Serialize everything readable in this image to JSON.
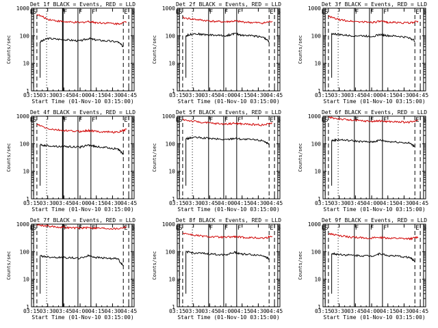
{
  "x_axis_label": "Start Time (01-Nov-10 03:15:00)",
  "y_axis_label": "Counts/sec",
  "colors": {
    "events": "#000000",
    "lld": "#d00000",
    "axes": "#000000"
  },
  "chart_data": [
    {
      "type": "line",
      "title": "Det 1f BLACK = Events, RED = LLD",
      "x_ticks": [
        "03:15",
        "03:30",
        "03:45",
        "04:00",
        "04:15",
        "04:30",
        "04:45"
      ],
      "x_range": [
        "03:15",
        "04:50"
      ],
      "y_scale": "log",
      "y_ticks": [
        "1",
        "10",
        "100",
        "1000"
      ],
      "y_range": [
        1,
        1000
      ],
      "markers": {
        "S": [
          "03:17",
          "04:48"
        ],
        "E": [
          "03:18",
          "04:45"
        ],
        "F": [
          "03:44",
          "03:58",
          "04:10"
        ]
      },
      "dashed_lines": [
        "03:17",
        "03:20",
        "04:40",
        "04:45"
      ],
      "dotted_lines": [
        "03:29"
      ],
      "series": [
        {
          "name": "Events",
          "color": "black",
          "x": [
            "03:23",
            "03:30",
            "03:40",
            "03:50",
            "04:00",
            "04:08",
            "04:15",
            "04:25",
            "04:35",
            "04:40"
          ],
          "values": [
            60,
            80,
            75,
            70,
            65,
            80,
            70,
            65,
            60,
            40
          ]
        },
        {
          "name": "LLD",
          "color": "red",
          "x": [
            "03:20",
            "03:30",
            "03:40",
            "03:50",
            "04:00",
            "04:08",
            "04:15",
            "04:25",
            "04:35",
            "04:43"
          ],
          "values": [
            600,
            400,
            340,
            310,
            300,
            330,
            300,
            290,
            270,
            320
          ]
        }
      ]
    },
    {
      "type": "line",
      "title": "Det 2f BLACK = Events, RED = LLD",
      "x_ticks": [
        "03:15",
        "03:30",
        "03:45",
        "04:00",
        "04:15",
        "04:30",
        "04:45"
      ],
      "x_range": [
        "03:15",
        "04:50"
      ],
      "y_scale": "log",
      "y_ticks": [
        "1",
        "10",
        "100",
        "1000"
      ],
      "y_range": [
        1,
        1000
      ],
      "markers": {
        "S": [
          "03:17",
          "04:48"
        ],
        "E": [
          "03:18",
          "04:45"
        ],
        "F": [
          "03:44",
          "03:58",
          "04:10"
        ]
      },
      "dashed_lines": [
        "03:17",
        "03:20",
        "04:40",
        "04:45"
      ],
      "dotted_lines": [
        "03:29"
      ],
      "series": [
        {
          "name": "Events",
          "color": "black",
          "x": [
            "03:23",
            "03:30",
            "03:40",
            "03:50",
            "04:00",
            "04:08",
            "04:15",
            "04:25",
            "04:35",
            "04:40"
          ],
          "values": [
            100,
            120,
            110,
            105,
            100,
            120,
            105,
            100,
            90,
            60
          ]
        },
        {
          "name": "LLD",
          "color": "red",
          "x": [
            "03:20",
            "03:30",
            "03:40",
            "03:50",
            "04:00",
            "04:08",
            "04:15",
            "04:25",
            "04:35",
            "04:43"
          ],
          "values": [
            450,
            400,
            360,
            330,
            320,
            340,
            320,
            300,
            290,
            340
          ]
        }
      ]
    },
    {
      "type": "line",
      "title": "Det 3f BLACK = Events, RED = LLD",
      "x_ticks": [
        "03:15",
        "03:30",
        "03:45",
        "04:00",
        "04:15",
        "04:30",
        "04:45"
      ],
      "x_range": [
        "03:15",
        "04:50"
      ],
      "y_scale": "log",
      "y_ticks": [
        "1",
        "10",
        "100",
        "1000"
      ],
      "y_range": [
        1,
        1000
      ],
      "markers": {
        "S": [
          "03:17",
          "04:48"
        ],
        "E": [
          "03:18",
          "04:45"
        ],
        "F": [
          "03:44",
          "03:58",
          "04:10"
        ]
      },
      "dashed_lines": [
        "03:17",
        "03:20",
        "04:40",
        "04:45"
      ],
      "dotted_lines": [
        "03:29"
      ],
      "series": [
        {
          "name": "Events",
          "color": "black",
          "x": [
            "03:23",
            "03:30",
            "03:40",
            "03:50",
            "04:00",
            "04:08",
            "04:15",
            "04:25",
            "04:35",
            "04:40"
          ],
          "values": [
            120,
            110,
            100,
            100,
            95,
            110,
            100,
            95,
            85,
            65
          ]
        },
        {
          "name": "LLD",
          "color": "red",
          "x": [
            "03:20",
            "03:30",
            "03:40",
            "03:50",
            "04:00",
            "04:08",
            "04:15",
            "04:25",
            "04:35",
            "04:43"
          ],
          "values": [
            500,
            380,
            340,
            320,
            310,
            330,
            310,
            300,
            290,
            340
          ]
        }
      ]
    },
    {
      "type": "line",
      "title": "Det 4f BLACK = Events, RED = LLD",
      "x_ticks": [
        "03:15",
        "03:30",
        "03:45",
        "04:00",
        "04:15",
        "04:30",
        "04:45"
      ],
      "x_range": [
        "03:15",
        "04:50"
      ],
      "y_scale": "log",
      "y_ticks": [
        "1",
        "10",
        "100",
        "1000"
      ],
      "y_range": [
        1,
        1000
      ],
      "markers": {
        "S": [
          "03:17",
          "04:48"
        ],
        "E": [
          "03:18",
          "04:45"
        ],
        "F": [
          "03:44",
          "03:58",
          "04:10"
        ]
      },
      "dashed_lines": [
        "03:17",
        "03:20",
        "04:40",
        "04:45"
      ],
      "dotted_lines": [
        "03:29"
      ],
      "series": [
        {
          "name": "Events",
          "color": "black",
          "x": [
            "03:23",
            "03:30",
            "03:40",
            "03:50",
            "04:00",
            "04:08",
            "04:15",
            "04:25",
            "04:35",
            "04:40"
          ],
          "values": [
            90,
            85,
            80,
            78,
            75,
            90,
            78,
            72,
            65,
            40
          ]
        },
        {
          "name": "LLD",
          "color": "red",
          "x": [
            "03:20",
            "03:30",
            "03:40",
            "03:50",
            "04:00",
            "04:08",
            "04:15",
            "04:25",
            "04:35",
            "04:43"
          ],
          "values": [
            500,
            350,
            310,
            290,
            280,
            300,
            280,
            270,
            260,
            330
          ]
        }
      ]
    },
    {
      "type": "line",
      "title": "Det 5f BLACK = Events, RED = LLD",
      "x_ticks": [
        "03:15",
        "03:30",
        "03:45",
        "04:00",
        "04:15",
        "04:30",
        "04:45"
      ],
      "x_range": [
        "03:15",
        "04:50"
      ],
      "y_scale": "log",
      "y_ticks": [
        "1",
        "10",
        "100",
        "1000"
      ],
      "y_range": [
        1,
        1000
      ],
      "markers": {
        "S": [
          "03:17",
          "04:48"
        ],
        "E": [
          "03:18",
          "04:45"
        ],
        "F": [
          "03:44",
          "03:58",
          "04:10"
        ]
      },
      "dashed_lines": [
        "03:17",
        "03:20",
        "04:40",
        "04:45"
      ],
      "dotted_lines": [
        "03:29"
      ],
      "series": [
        {
          "name": "Events",
          "color": "black",
          "x": [
            "03:23",
            "03:30",
            "03:40",
            "03:50",
            "04:00",
            "04:08",
            "04:15",
            "04:25",
            "04:35",
            "04:40"
          ],
          "values": [
            150,
            170,
            160,
            150,
            140,
            160,
            145,
            140,
            130,
            90
          ]
        },
        {
          "name": "LLD",
          "color": "red",
          "x": [
            "03:20",
            "03:30",
            "03:40",
            "03:50",
            "04:00",
            "04:08",
            "04:15",
            "04:25",
            "04:35",
            "04:43"
          ],
          "values": [
            750,
            650,
            580,
            540,
            520,
            550,
            520,
            500,
            480,
            560
          ]
        }
      ]
    },
    {
      "type": "line",
      "title": "Det 6f BLACK = Events, RED = LLD",
      "x_ticks": [
        "03:15",
        "03:30",
        "03:45",
        "04:00",
        "04:15",
        "04:30",
        "04:45"
      ],
      "x_range": [
        "03:15",
        "04:50"
      ],
      "y_scale": "log",
      "y_ticks": [
        "1",
        "10",
        "100",
        "1000"
      ],
      "y_range": [
        1,
        1000
      ],
      "markers": {
        "S": [
          "03:17",
          "04:48"
        ],
        "E": [
          "03:18",
          "04:45"
        ],
        "F": [
          "03:44",
          "03:58",
          "04:10"
        ]
      },
      "dashed_lines": [
        "03:17",
        "03:20",
        "04:40",
        "04:45"
      ],
      "dotted_lines": [
        "03:29"
      ],
      "series": [
        {
          "name": "Events",
          "color": "black",
          "x": [
            "03:23",
            "03:30",
            "03:40",
            "03:50",
            "04:00",
            "04:08",
            "04:15",
            "04:25",
            "04:35",
            "04:40"
          ],
          "values": [
            130,
            140,
            130,
            120,
            115,
            135,
            120,
            115,
            105,
            80
          ]
        },
        {
          "name": "LLD",
          "color": "red",
          "x": [
            "03:20",
            "03:30",
            "03:40",
            "03:50",
            "04:00",
            "04:08",
            "04:15",
            "04:25",
            "04:35",
            "04:43"
          ],
          "values": [
            900,
            800,
            720,
            680,
            650,
            670,
            640,
            620,
            600,
            700
          ]
        }
      ]
    },
    {
      "type": "line",
      "title": "Det 7f BLACK = Events, RED = LLD",
      "x_ticks": [
        "03:15",
        "03:30",
        "03:45",
        "04:00",
        "04:15",
        "04:30",
        "04:45"
      ],
      "x_range": [
        "03:15",
        "04:50"
      ],
      "y_scale": "log",
      "y_ticks": [
        "1",
        "10",
        "100",
        "1000"
      ],
      "y_range": [
        1,
        1000
      ],
      "markers": {
        "S": [
          "03:17",
          "04:48"
        ],
        "E": [
          "03:18",
          "04:45"
        ],
        "F": [
          "03:44",
          "03:58",
          "04:10"
        ]
      },
      "dashed_lines": [
        "03:17",
        "03:20",
        "04:40",
        "04:45"
      ],
      "dotted_lines": [
        "03:29"
      ],
      "series": [
        {
          "name": "Events",
          "color": "black",
          "x": [
            "03:23",
            "03:30",
            "03:40",
            "03:50",
            "04:00",
            "04:08",
            "04:15",
            "04:25",
            "04:35",
            "04:40"
          ],
          "values": [
            70,
            65,
            62,
            60,
            58,
            72,
            62,
            58,
            55,
            30
          ]
        },
        {
          "name": "LLD",
          "color": "red",
          "x": [
            "03:20",
            "03:30",
            "03:40",
            "03:50",
            "04:00",
            "04:08",
            "04:15",
            "04:25",
            "04:35",
            "04:43"
          ],
          "values": [
            950,
            850,
            780,
            740,
            720,
            750,
            720,
            700,
            680,
            800
          ]
        }
      ]
    },
    {
      "type": "line",
      "title": "Det 8f BLACK = Events, RED = LLD",
      "x_ticks": [
        "03:15",
        "03:30",
        "03:45",
        "04:00",
        "04:15",
        "04:30",
        "04:45"
      ],
      "x_range": [
        "03:15",
        "04:50"
      ],
      "y_scale": "log",
      "y_ticks": [
        "1",
        "10",
        "100",
        "1000"
      ],
      "y_range": [
        1,
        1000
      ],
      "markers": {
        "S": [
          "03:17",
          "04:48"
        ],
        "E": [
          "03:18",
          "04:45"
        ],
        "F": [
          "03:44",
          "03:58",
          "04:10"
        ]
      },
      "dashed_lines": [
        "03:17",
        "03:20",
        "04:40",
        "04:45"
      ],
      "dotted_lines": [
        "03:29"
      ],
      "series": [
        {
          "name": "Events",
          "color": "black",
          "x": [
            "03:23",
            "03:30",
            "03:40",
            "03:50",
            "04:00",
            "04:08",
            "04:15",
            "04:25",
            "04:35",
            "04:40"
          ],
          "values": [
            100,
            90,
            85,
            80,
            78,
            95,
            82,
            78,
            72,
            55
          ]
        },
        {
          "name": "LLD",
          "color": "red",
          "x": [
            "03:20",
            "03:30",
            "03:40",
            "03:50",
            "04:00",
            "04:08",
            "04:15",
            "04:25",
            "04:35",
            "04:43"
          ],
          "values": [
            480,
            400,
            360,
            340,
            330,
            350,
            330,
            320,
            310,
            360
          ]
        }
      ]
    },
    {
      "type": "line",
      "title": "Det 9f BLACK = Events, RED = LLD",
      "x_ticks": [
        "03:15",
        "03:30",
        "03:45",
        "04:00",
        "04:15",
        "04:30",
        "04:45"
      ],
      "x_range": [
        "03:15",
        "04:50"
      ],
      "y_scale": "log",
      "y_ticks": [
        "1",
        "10",
        "100",
        "1000"
      ],
      "y_range": [
        1,
        1000
      ],
      "markers": {
        "S": [
          "03:17",
          "04:48"
        ],
        "E": [
          "03:18",
          "04:45"
        ],
        "F": [
          "03:44",
          "03:58",
          "04:10"
        ]
      },
      "dashed_lines": [
        "03:17",
        "03:20",
        "04:40",
        "04:45"
      ],
      "dotted_lines": [
        "03:29"
      ],
      "series": [
        {
          "name": "Events",
          "color": "black",
          "x": [
            "03:23",
            "03:30",
            "03:40",
            "03:50",
            "04:00",
            "04:08",
            "04:15",
            "04:25",
            "04:35",
            "04:40"
          ],
          "values": [
            85,
            80,
            75,
            72,
            70,
            85,
            72,
            68,
            62,
            45
          ]
        },
        {
          "name": "LLD",
          "color": "red",
          "x": [
            "03:20",
            "03:30",
            "03:40",
            "03:50",
            "04:00",
            "04:08",
            "04:15",
            "04:25",
            "04:35",
            "04:43"
          ],
          "values": [
            450,
            380,
            340,
            320,
            310,
            330,
            310,
            300,
            290,
            340
          ]
        }
      ]
    }
  ]
}
